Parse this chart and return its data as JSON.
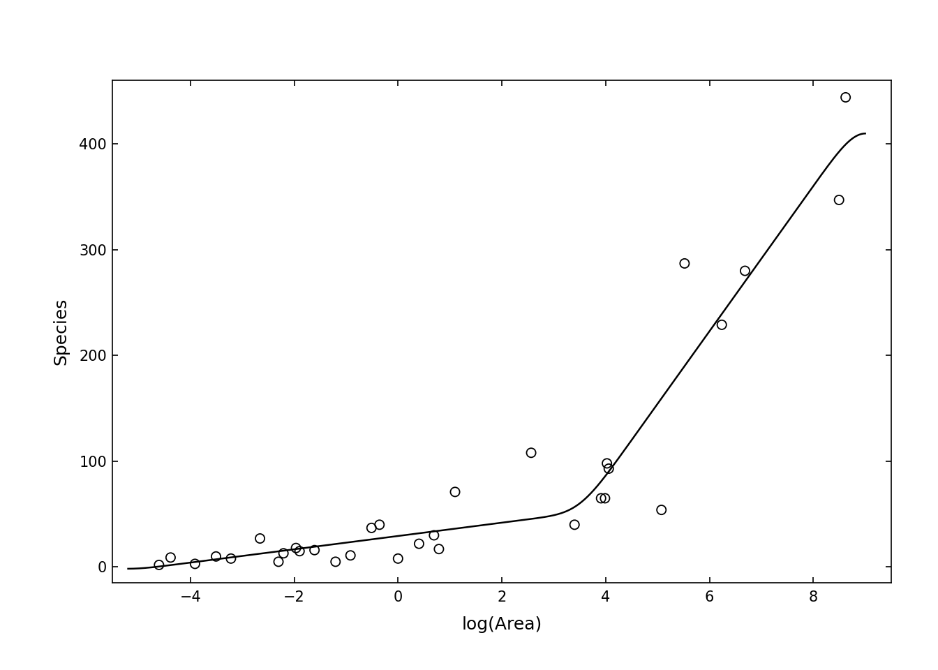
{
  "title": "",
  "xlabel": "log(Area)",
  "ylabel": "Species",
  "background_color": "#ffffff",
  "scatter_color": "none",
  "scatter_edge_color": "#000000",
  "line_color": "#000000",
  "xlim": [
    -5.5,
    9.5
  ],
  "ylim": [
    -15,
    460
  ],
  "xticks": [
    -4,
    -2,
    0,
    2,
    4,
    6,
    8
  ],
  "yticks": [
    0,
    100,
    200,
    300,
    400
  ],
  "points": [
    [
      -4.605,
      2
    ],
    [
      -4.382,
      9
    ],
    [
      -3.912,
      3
    ],
    [
      -3.507,
      10
    ],
    [
      -3.219,
      8
    ],
    [
      -2.659,
      27
    ],
    [
      -2.303,
      5
    ],
    [
      -2.207,
      13
    ],
    [
      -1.966,
      18
    ],
    [
      -1.897,
      15
    ],
    [
      -1.609,
      16
    ],
    [
      -1.204,
      5
    ],
    [
      -0.916,
      11
    ],
    [
      -0.511,
      37
    ],
    [
      -0.357,
      40
    ],
    [
      0.0,
      8
    ],
    [
      0.405,
      22
    ],
    [
      0.693,
      30
    ],
    [
      0.788,
      17
    ],
    [
      1.099,
      71
    ],
    [
      2.565,
      108
    ],
    [
      3.401,
      40
    ],
    [
      3.912,
      65
    ],
    [
      3.988,
      65
    ],
    [
      4.025,
      98
    ],
    [
      4.06,
      93
    ],
    [
      5.075,
      54
    ],
    [
      5.521,
      287
    ],
    [
      6.238,
      229
    ],
    [
      6.685,
      280
    ],
    [
      8.497,
      347
    ],
    [
      8.624,
      444
    ]
  ],
  "knot": 3.5,
  "line_x_start": -5.2,
  "line_x_end": 9.0
}
